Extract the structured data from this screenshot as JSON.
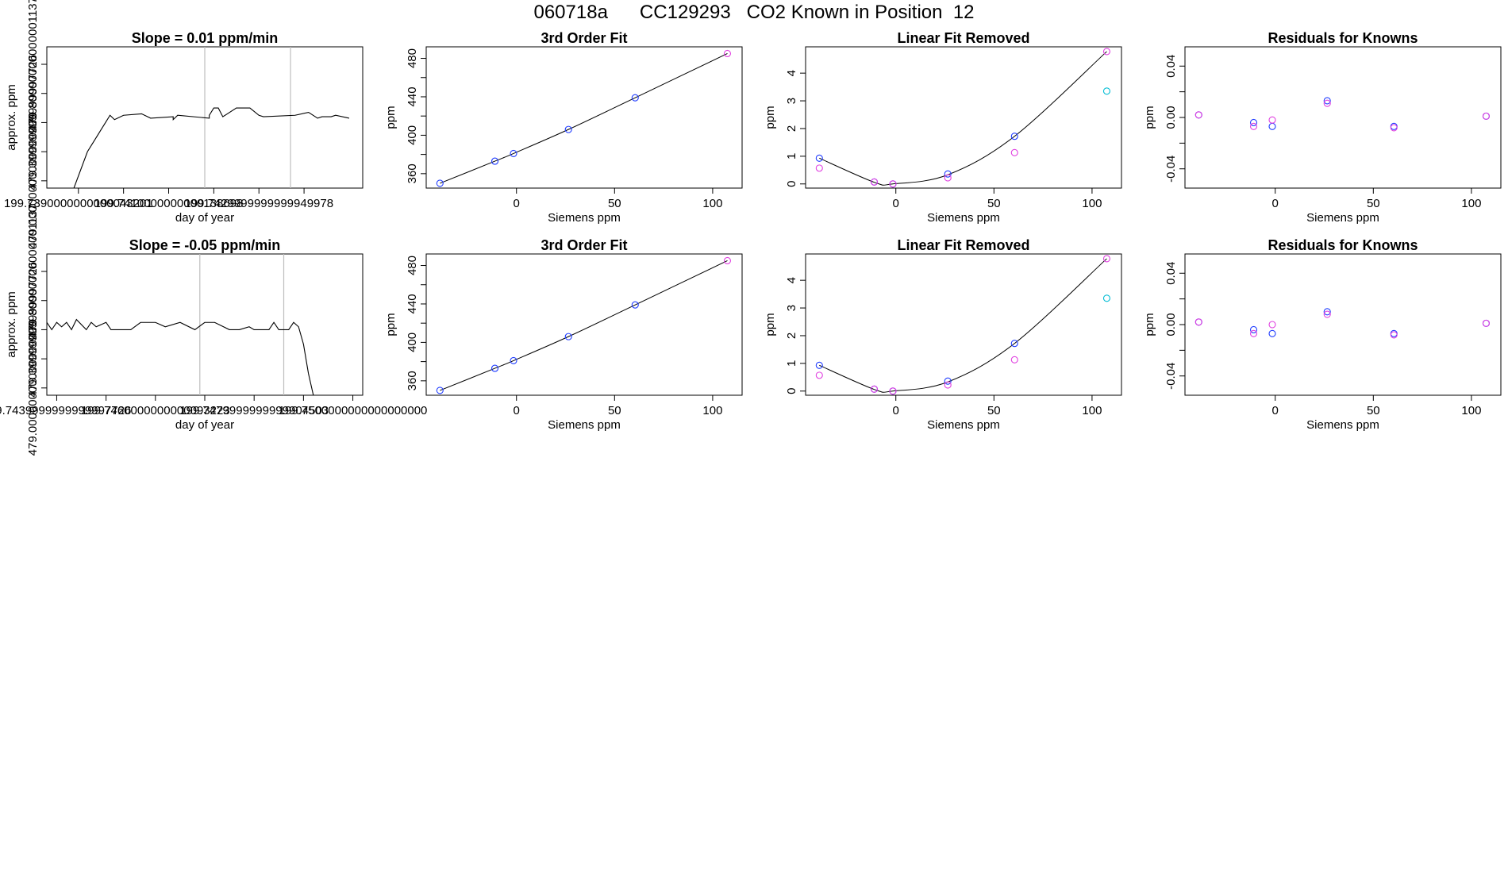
{
  "page": {
    "title": "060718a      CC129293   CO2 Known in Position  12"
  },
  "colors": {
    "axis": "#000000",
    "trace": "#000000",
    "guide": "#bebebe",
    "blue": "#1f3cff",
    "magenta": "#e040e0",
    "purple": "#8a2be2",
    "cyan": "#00bcd4"
  },
  "chart_data": [
    {
      "type": "line",
      "title": "Slope =  0.01  ppm/min",
      "xlabel": "day of year",
      "ylabel": "approx. ppm",
      "xlim": [
        199.7383,
        199.7453
      ],
      "ylim": [
        478.95,
        479.92
      ],
      "xticks": [
        199.739,
        199.741,
        199.743
      ],
      "xtick_minor": [
        199.74,
        199.742,
        199.744
      ],
      "yticks": [
        479.0,
        479.4,
        479.8
      ],
      "ytick_minor": [
        479.2,
        479.6
      ],
      "vlines": [
        199.7418,
        199.7437
      ],
      "x": [
        199.7389,
        199.7392,
        199.7393,
        199.7394,
        199.7395,
        199.7396,
        199.7397,
        199.7398,
        199.74,
        199.7404,
        199.7406,
        199.7411,
        199.7411,
        199.7412,
        199.7419,
        199.7419,
        199.742,
        199.7421,
        199.7422,
        199.7423,
        199.7425,
        199.7428,
        199.743,
        199.7431,
        199.7438,
        199.7441,
        199.7443,
        199.7444,
        199.7446,
        199.7447,
        199.745
      ],
      "y": [
        478.95,
        479.2,
        479.25,
        479.3,
        479.35,
        479.4,
        479.45,
        479.42,
        479.45,
        479.46,
        479.43,
        479.44,
        479.42,
        479.45,
        479.43,
        479.45,
        479.5,
        479.5,
        479.44,
        479.46,
        479.5,
        479.5,
        479.45,
        479.44,
        479.45,
        479.47,
        479.43,
        479.44,
        479.44,
        479.45,
        479.43
      ]
    },
    {
      "type": "scatter",
      "title": "3rd Order Fit",
      "xlabel": "Siemens ppm",
      "ylabel": "ppm",
      "xlim": [
        -46,
        115
      ],
      "ylim": [
        345,
        492
      ],
      "xticks": [
        0,
        50,
        100
      ],
      "yticks": [
        360,
        400,
        440,
        480
      ],
      "ytick_minor": [
        380,
        420,
        460
      ],
      "series": [
        {
          "color": "#1f3cff",
          "x": [
            -39,
            -11,
            -1.5,
            26.5,
            60.5
          ],
          "y": [
            350,
            373,
            381,
            406,
            439
          ]
        },
        {
          "color": "#e040e0",
          "x": [
            107.5
          ],
          "y": [
            485
          ]
        }
      ],
      "fit_curve": {
        "x": [
          -39,
          -11,
          -1.5,
          26.5,
          60.5,
          107.5
        ],
        "y": [
          350,
          373,
          381,
          406,
          439,
          485
        ]
      }
    },
    {
      "type": "scatter",
      "title": "Linear Fit Removed",
      "xlabel": "Siemens ppm",
      "ylabel": "ppm",
      "xlim": [
        -46,
        115
      ],
      "ylim": [
        -0.15,
        4.95
      ],
      "xticks": [
        0,
        50,
        100
      ],
      "yticks": [
        0,
        1,
        2,
        3,
        4
      ],
      "series": [
        {
          "color": "#1f3cff",
          "x": [
            -39,
            -11,
            -1.5,
            26.5,
            60.5
          ],
          "y": [
            0.93,
            0.07,
            0.0,
            0.36,
            1.72
          ]
        },
        {
          "color": "#e040e0",
          "x": [
            -39,
            -11,
            -1.5,
            26.5,
            60.5,
            107.5
          ],
          "y": [
            0.57,
            0.07,
            0.0,
            0.22,
            1.13,
            4.78
          ]
        },
        {
          "color": "#00bcd4",
          "x": [
            107.5
          ],
          "y": [
            3.35
          ]
        }
      ],
      "fit_curve": {
        "x": [
          -39,
          -11,
          -1.5,
          26.5,
          60.5,
          107.5
        ],
        "y": [
          0.93,
          0.06,
          0.0,
          0.33,
          1.72,
          4.78
        ]
      }
    },
    {
      "type": "scatter",
      "title": "Residuals for Knowns",
      "xlabel": "Siemens ppm",
      "ylabel": "ppm",
      "xlim": [
        -46,
        115
      ],
      "ylim": [
        -0.055,
        0.055
      ],
      "xticks": [
        0,
        50,
        100
      ],
      "yticks": [
        -0.04,
        0.0,
        0.04
      ],
      "ytick_minor": [
        -0.02,
        0.02
      ],
      "series": [
        {
          "color": "#1f3cff",
          "x": [
            -39,
            -11,
            -1.5,
            26.5,
            60.5,
            107.5
          ],
          "y": [
            0.002,
            -0.004,
            -0.007,
            0.013,
            -0.007,
            0.001
          ]
        },
        {
          "color": "#e040e0",
          "x": [
            -39,
            -11,
            -1.5,
            26.5,
            60.5,
            107.5
          ],
          "y": [
            0.002,
            -0.007,
            -0.002,
            0.011,
            -0.008,
            0.001
          ]
        }
      ]
    },
    {
      "type": "line",
      "title": "Slope =  -0.05  ppm/min",
      "xlabel": "day of year",
      "ylabel": "approx. ppm",
      "xlim": [
        199.7438,
        199.7502
      ],
      "ylim": [
        478.95,
        479.92
      ],
      "xticks": [
        199.744,
        199.746,
        199.748,
        199.75
      ],
      "xtick_minor": [
        199.745,
        199.747,
        199.749
      ],
      "yticks": [
        479.0,
        479.4,
        479.8
      ],
      "ytick_minor": [
        479.2,
        479.6
      ],
      "vlines": [
        199.7469,
        199.7486
      ],
      "x": [
        199.7438,
        199.7439,
        199.744,
        199.7441,
        199.7442,
        199.7443,
        199.7444,
        199.7446,
        199.7447,
        199.7448,
        199.745,
        199.7451,
        199.7453,
        199.7455,
        199.7457,
        199.746,
        199.7462,
        199.7465,
        199.7468,
        199.747,
        199.7472,
        199.7475,
        199.7477,
        199.7479,
        199.748,
        199.7483,
        199.7484,
        199.7485,
        199.7487,
        199.7488,
        199.7489,
        199.749,
        199.7491,
        199.7492
      ],
      "y": [
        479.45,
        479.4,
        479.45,
        479.42,
        479.45,
        479.4,
        479.47,
        479.4,
        479.45,
        479.42,
        479.45,
        479.4,
        479.4,
        479.4,
        479.45,
        479.45,
        479.42,
        479.45,
        479.4,
        479.45,
        479.45,
        479.4,
        479.4,
        479.42,
        479.4,
        479.4,
        479.45,
        479.4,
        479.4,
        479.45,
        479.42,
        479.3,
        479.1,
        478.95
      ]
    },
    {
      "type": "scatter",
      "title": "3rd Order Fit",
      "xlabel": "Siemens ppm",
      "ylabel": "ppm",
      "xlim": [
        -46,
        115
      ],
      "ylim": [
        345,
        492
      ],
      "xticks": [
        0,
        50,
        100
      ],
      "yticks": [
        360,
        400,
        440,
        480
      ],
      "ytick_minor": [
        380,
        420,
        460
      ],
      "series": [
        {
          "color": "#1f3cff",
          "x": [
            -39,
            -11,
            -1.5,
            26.5,
            60.5
          ],
          "y": [
            350,
            373,
            381,
            406,
            439
          ]
        },
        {
          "color": "#e040e0",
          "x": [
            107.5
          ],
          "y": [
            485
          ]
        }
      ],
      "fit_curve": {
        "x": [
          -39,
          -11,
          -1.5,
          26.5,
          60.5,
          107.5
        ],
        "y": [
          350,
          373,
          381,
          406,
          439,
          485
        ]
      }
    },
    {
      "type": "scatter",
      "title": "Linear Fit Removed",
      "xlabel": "Siemens ppm",
      "ylabel": "ppm",
      "xlim": [
        -46,
        115
      ],
      "ylim": [
        -0.15,
        4.95
      ],
      "xticks": [
        0,
        50,
        100
      ],
      "yticks": [
        0,
        1,
        2,
        3,
        4
      ],
      "series": [
        {
          "color": "#1f3cff",
          "x": [
            -39,
            -11,
            -1.5,
            26.5,
            60.5
          ],
          "y": [
            0.93,
            0.07,
            0.0,
            0.36,
            1.72
          ]
        },
        {
          "color": "#e040e0",
          "x": [
            -39,
            -11,
            -1.5,
            26.5,
            60.5,
            107.5
          ],
          "y": [
            0.57,
            0.07,
            0.0,
            0.22,
            1.13,
            4.78
          ]
        },
        {
          "color": "#00bcd4",
          "x": [
            107.5
          ],
          "y": [
            3.35
          ]
        }
      ],
      "fit_curve": {
        "x": [
          -39,
          -11,
          -1.5,
          26.5,
          60.5,
          107.5
        ],
        "y": [
          0.93,
          0.06,
          0.0,
          0.33,
          1.72,
          4.78
        ]
      }
    },
    {
      "type": "scatter",
      "title": "Residuals for Knowns",
      "xlabel": "Siemens ppm",
      "ylabel": "ppm",
      "xlim": [
        -46,
        115
      ],
      "ylim": [
        -0.055,
        0.055
      ],
      "xticks": [
        0,
        50,
        100
      ],
      "yticks": [
        -0.04,
        0.0,
        0.04
      ],
      "ytick_minor": [
        -0.02,
        0.02
      ],
      "series": [
        {
          "color": "#1f3cff",
          "x": [
            -39,
            -11,
            -1.5,
            26.5,
            60.5,
            107.5
          ],
          "y": [
            0.002,
            -0.004,
            -0.007,
            0.01,
            -0.007,
            0.001
          ]
        },
        {
          "color": "#e040e0",
          "x": [
            -39,
            -11,
            -1.5,
            26.5,
            60.5,
            107.5
          ],
          "y": [
            0.002,
            -0.007,
            0.0,
            0.008,
            -0.008,
            0.001
          ]
        }
      ]
    }
  ]
}
